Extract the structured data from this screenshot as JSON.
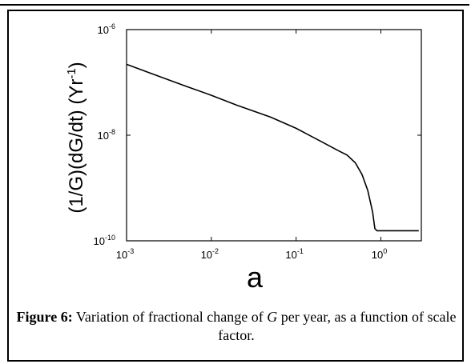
{
  "chart_data": {
    "type": "line",
    "xscale": "log",
    "yscale": "log",
    "xlim": [
      0.001,
      3
    ],
    "ylim": [
      1e-10,
      1e-06
    ],
    "xlabel": "a",
    "ylabel": "(1/G)(dG/dt) (Yr-1)",
    "x_ticks": [
      {
        "base": "10",
        "exp": "-3",
        "value": 0.001
      },
      {
        "base": "10",
        "exp": "-2",
        "value": 0.01
      },
      {
        "base": "10",
        "exp": "-1",
        "value": 0.1
      },
      {
        "base": "10",
        "exp": "0",
        "value": 1
      }
    ],
    "y_ticks": [
      {
        "base": "10",
        "exp": "-6",
        "value": 1e-06
      },
      {
        "base": "10",
        "exp": "-8",
        "value": 1e-08
      },
      {
        "base": "10",
        "exp": "-10",
        "value": 1e-10
      }
    ],
    "series": [
      {
        "color": "#000000",
        "x": [
          0.001,
          0.002,
          0.005,
          0.01,
          0.02,
          0.05,
          0.1,
          0.2,
          0.3,
          0.4,
          0.5,
          0.6,
          0.7,
          0.8,
          0.85,
          0.9,
          1.0,
          1.5,
          2.0,
          2.8
        ],
        "y": [
          2.2e-07,
          1.45e-07,
          8.5e-08,
          5.7e-08,
          3.7e-08,
          2.2e-08,
          1.35e-08,
          7.5e-09,
          5.3e-09,
          4.2e-09,
          3e-09,
          1.8e-09,
          9e-10,
          3.5e-10,
          1.7e-10,
          1.55e-10,
          1.55e-10,
          1.55e-10,
          1.55e-10,
          1.55e-10
        ]
      }
    ]
  },
  "caption": {
    "label": "Figure 6:",
    "text_before": " Variation of fractional change of ",
    "symbol": "G",
    "text_after": " per year, as a function of scale factor."
  }
}
